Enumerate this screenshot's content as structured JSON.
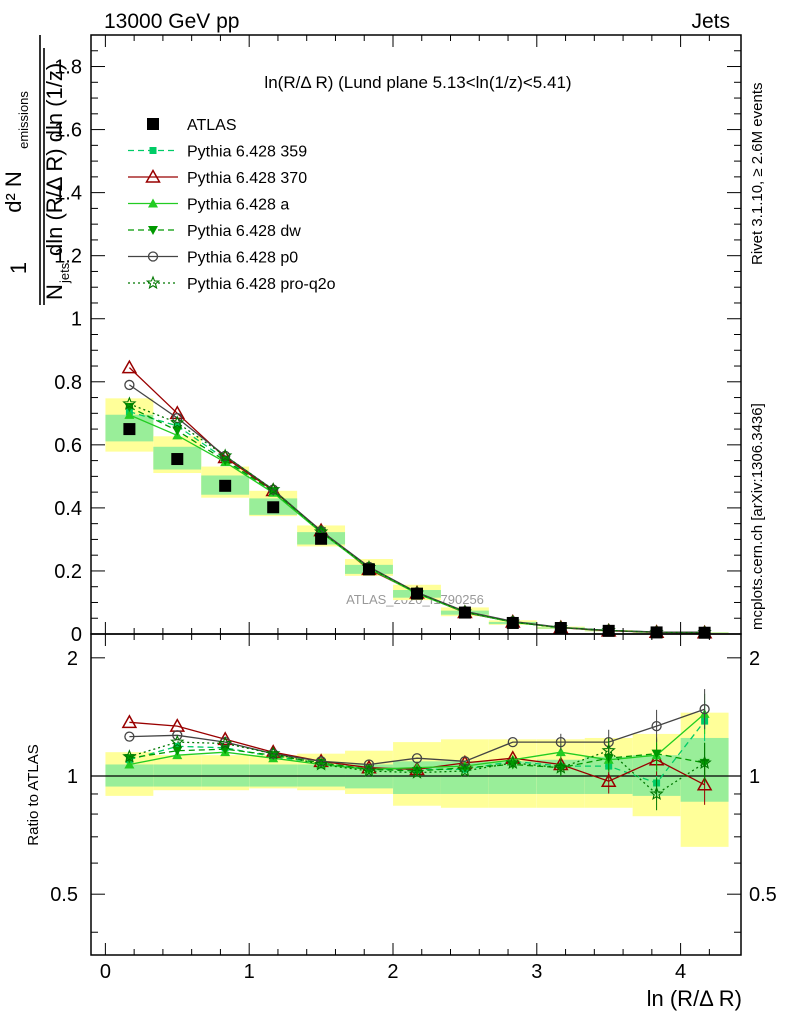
{
  "header": {
    "left": "13000 GeV pp",
    "right": "Jets"
  },
  "side_labels": {
    "rivet": "Rivet 3.1.10, ≥ 2.6M events",
    "mcplots": "mcplots.cern.ch [arXiv:1306.3436]"
  },
  "plot_title": "ln(R/Δ R) (Lund plane 5.13<ln(1/z)<5.41)",
  "watermark": "ATLAS_2020_I1790256",
  "ratio_ylabel": "Ratio to ATLAS",
  "chart_data": {
    "type": "scatter",
    "xlabel": "ln (R/Δ R)",
    "ylabel": "1/N_jets dN_emissions / (dln(R/ΔR) dln(1/z))",
    "xlim": [
      -0.1,
      4.42
    ],
    "main_ylim": [
      0,
      1.9
    ],
    "ratio_ylim": [
      0.35,
      2.3
    ],
    "x_ticks": [
      "0",
      "1",
      "2",
      "3",
      "4"
    ],
    "main_y_ticks": [
      "0.2",
      "0.4",
      "0.6",
      "0.8",
      "1",
      "1.2",
      "1.4",
      "1.6",
      "1.8"
    ],
    "ratio_y_ticks": [
      "0.5",
      "1",
      "2"
    ],
    "x": [
      0.167,
      0.5,
      0.833,
      1.167,
      1.5,
      1.833,
      2.167,
      2.5,
      2.833,
      3.167,
      3.5,
      3.833,
      4.167
    ],
    "data": {
      "name": "ATLAS",
      "values": [
        0.65,
        0.555,
        0.47,
        0.402,
        0.302,
        0.205,
        0.128,
        0.068,
        0.035,
        0.019,
        0.01,
        0.005,
        0.004
      ],
      "band_inner_lo": [
        0.94,
        0.94,
        0.94,
        0.94,
        0.94,
        0.93,
        0.9,
        0.9,
        0.9,
        0.9,
        0.9,
        0.89,
        0.86
      ],
      "band_inner_hi": [
        1.07,
        1.07,
        1.07,
        1.07,
        1.07,
        1.07,
        1.09,
        1.09,
        1.09,
        1.1,
        1.12,
        1.13,
        1.25
      ],
      "band_outer_lo": [
        0.89,
        0.92,
        0.92,
        0.93,
        0.92,
        0.9,
        0.84,
        0.83,
        0.83,
        0.83,
        0.83,
        0.79,
        0.66
      ],
      "band_outer_hi": [
        1.15,
        1.13,
        1.13,
        1.13,
        1.14,
        1.16,
        1.22,
        1.24,
        1.24,
        1.24,
        1.25,
        1.28,
        1.45
      ]
    },
    "series": [
      {
        "name": "Pythia 6.428 359",
        "color": "#00cc66",
        "dash": "6,4",
        "marker": "square-small",
        "values": [
          0.705,
          0.66,
          0.555,
          0.452,
          0.325,
          0.21,
          0.13,
          0.07,
          0.038,
          0.02,
          0.011,
          0.0055,
          0.0045
        ],
        "ratio": [
          1.1,
          1.19,
          1.18,
          1.12,
          1.08,
          1.04,
          1.04,
          1.04,
          1.09,
          1.06,
          1.06,
          0.96,
          1.38
        ]
      },
      {
        "name": "Pythia 6.428 370",
        "color": "#990000",
        "dash": "",
        "marker": "triangle-open",
        "values": [
          0.845,
          0.7,
          0.56,
          0.455,
          0.328,
          0.205,
          0.13,
          0.068,
          0.038,
          0.02,
          0.01,
          0.0055,
          0.0038
        ],
        "ratio": [
          1.37,
          1.34,
          1.24,
          1.15,
          1.09,
          1.05,
          1.04,
          1.08,
          1.11,
          1.07,
          0.97,
          1.1,
          0.95
        ]
      },
      {
        "name": "Pythia 6.428 a",
        "color": "#22cc22",
        "dash": "",
        "marker": "triangle-up",
        "values": [
          0.695,
          0.63,
          0.545,
          0.448,
          0.322,
          0.208,
          0.128,
          0.069,
          0.037,
          0.021,
          0.011,
          0.006,
          0.006
        ],
        "ratio": [
          1.07,
          1.13,
          1.15,
          1.11,
          1.07,
          1.04,
          1.05,
          1.06,
          1.1,
          1.15,
          1.1,
          1.13,
          1.44
        ]
      },
      {
        "name": "Pythia 6.428 dw",
        "color": "#009900",
        "dash": "6,4",
        "marker": "triangle-down",
        "values": [
          0.72,
          0.645,
          0.55,
          0.453,
          0.326,
          0.212,
          0.131,
          0.071,
          0.038,
          0.02,
          0.011,
          0.006,
          0.0045
        ],
        "ratio": [
          1.11,
          1.16,
          1.17,
          1.13,
          1.08,
          1.04,
          1.03,
          1.05,
          1.07,
          1.05,
          1.11,
          1.14,
          1.08
        ]
      },
      {
        "name": "Pythia 6.428 p0",
        "color": "#444444",
        "dash": "",
        "marker": "circle-open",
        "values": [
          0.79,
          0.685,
          0.565,
          0.458,
          0.327,
          0.213,
          0.132,
          0.072,
          0.04,
          0.021,
          0.011,
          0.0062,
          0.0058
        ],
        "ratio": [
          1.26,
          1.27,
          1.22,
          1.14,
          1.09,
          1.07,
          1.11,
          1.09,
          1.22,
          1.22,
          1.22,
          1.34,
          1.48
        ]
      },
      {
        "name": "Pythia 6.428 pro-q2o",
        "color": "#007700",
        "dash": "2,3",
        "marker": "star",
        "values": [
          0.73,
          0.67,
          0.565,
          0.458,
          0.324,
          0.211,
          0.13,
          0.07,
          0.038,
          0.02,
          0.011,
          0.0055,
          0.0045
        ],
        "ratio": [
          1.12,
          1.22,
          1.21,
          1.14,
          1.07,
          1.03,
          1.02,
          1.03,
          1.08,
          1.05,
          1.16,
          0.9,
          1.08
        ]
      }
    ]
  }
}
